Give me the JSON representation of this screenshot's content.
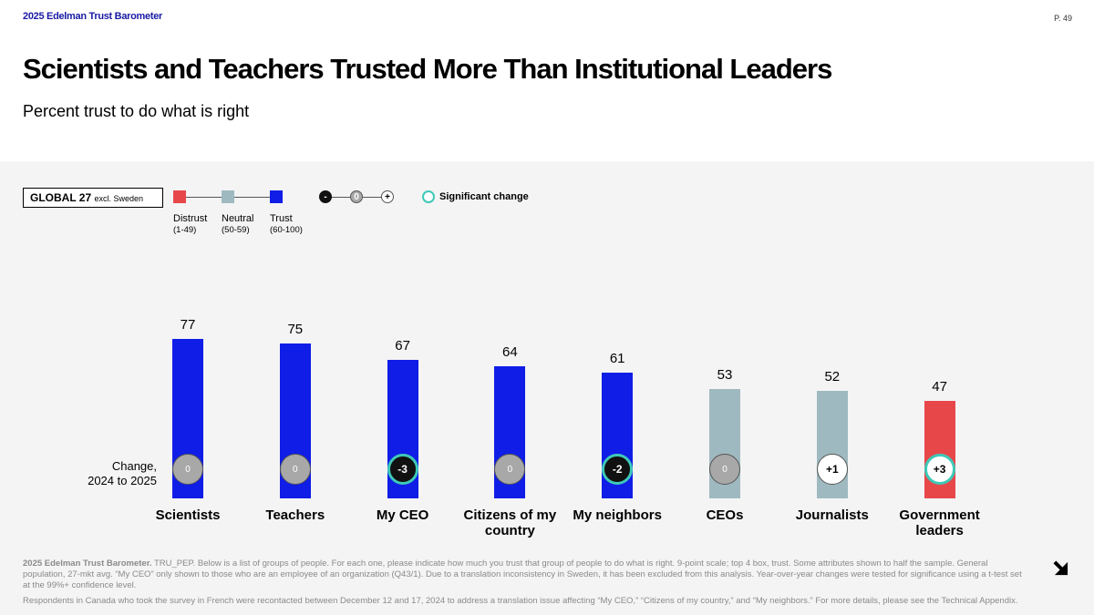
{
  "header": {
    "brand": "2025 Edelman Trust Barometer",
    "page": "P. 49"
  },
  "title": "Scientists and Teachers Trusted More Than Institutional Leaders",
  "subtitle": "Percent trust to do what is right",
  "legend": {
    "scope": "GLOBAL 27",
    "scope_note": "excl. Sweden",
    "levels": [
      {
        "name": "Distrust",
        "range": "(1-49)",
        "color": "#e8474a"
      },
      {
        "name": "Neutral",
        "range": "(50-59)",
        "color": "#9fb9c0"
      },
      {
        "name": "Trust",
        "range": "(60-100)",
        "color": "#0f1de6"
      }
    ],
    "change_symbols": [
      "-",
      "0",
      "+"
    ],
    "significant": "Significant change"
  },
  "chart_data": {
    "type": "bar",
    "change_label": "Change, 2024 to 2025",
    "categories": [
      "Scientists",
      "Teachers",
      "My CEO",
      "Citizens of my country",
      "My neighbors",
      "CEOs",
      "Journalists",
      "Government leaders"
    ],
    "values": [
      77,
      75,
      67,
      64,
      61,
      53,
      52,
      47
    ],
    "colors": [
      "#0f1de6",
      "#0f1de6",
      "#0f1de6",
      "#0f1de6",
      "#0f1de6",
      "#9fb9c0",
      "#9fb9c0",
      "#e8474a"
    ],
    "change": {
      "values": [
        0,
        0,
        -3,
        0,
        -2,
        0,
        1,
        3
      ],
      "value_labels": [
        "0",
        "0",
        "-3",
        "0",
        "-2",
        "0",
        "+1",
        "+3"
      ],
      "significant": [
        false,
        false,
        true,
        false,
        true,
        false,
        false,
        true
      ]
    }
  },
  "footnotes": [
    "2025 Edelman Trust Barometer.",
    "TRU_PEP. Below is a list of groups of people. For each one, please indicate how much you trust that group of people to do what is right. 9-point scale; top 4 box, trust. Some attributes shown to half the sample. General population, 27-mkt avg. “My CEO” only shown to those who are an employee of an organization (Q43/1). Due to a translation inconsistency in Sweden, it has been excluded from this analysis. Year-over-year changes were tested for significance using a t-test set at the 99%+ confidence level.",
    "Respondents in Canada who took the survey in French were recontacted between December 12 and 17, 2024 to address a translation issue affecting “My CEO,” “Citizens of my country,” and “My neighbors.” For more details, please see the Technical Appendix."
  ]
}
